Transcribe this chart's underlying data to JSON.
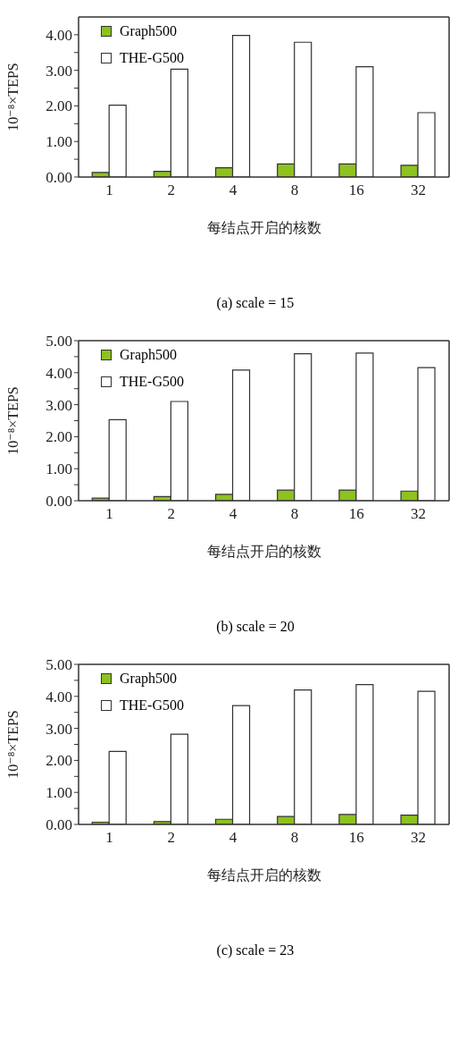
{
  "chart_data": [
    {
      "type": "bar",
      "title": "(a)  scale = 15",
      "xlabel": "每结点开启的核数",
      "ylabel": "10⁻⁸×TEPS",
      "categories": [
        "1",
        "2",
        "4",
        "8",
        "16",
        "32"
      ],
      "series": [
        {
          "name": "Graph500",
          "color": "#8dc21f",
          "values": [
            0.13,
            0.16,
            0.26,
            0.37,
            0.37,
            0.33
          ]
        },
        {
          "name": "THE-G500",
          "color": "#ffffff",
          "values": [
            2.02,
            3.03,
            3.98,
            3.79,
            3.1,
            1.81
          ]
        }
      ],
      "ylim": [
        0,
        4.5
      ],
      "yticks": [
        {
          "value": 0,
          "label": "0.00"
        },
        {
          "value": 0.5,
          "label": null
        },
        {
          "value": 1,
          "label": "1.00"
        },
        {
          "value": 1.5,
          "label": null
        },
        {
          "value": 2,
          "label": "2.00"
        },
        {
          "value": 2.5,
          "label": null
        },
        {
          "value": 3,
          "label": "3.00"
        },
        {
          "value": 3.5,
          "label": null
        },
        {
          "value": 4,
          "label": "4.00"
        }
      ],
      "grid": false,
      "legend": "top left"
    },
    {
      "type": "bar",
      "title": "(b)  scale = 20",
      "xlabel": "每结点开启的核数",
      "ylabel": "10⁻⁸×TEPS",
      "categories": [
        "1",
        "2",
        "4",
        "8",
        "16",
        "32"
      ],
      "series": [
        {
          "name": "Graph500",
          "color": "#8dc21f",
          "values": [
            0.08,
            0.13,
            0.2,
            0.33,
            0.33,
            0.3
          ]
        },
        {
          "name": "THE-G500",
          "color": "#ffffff",
          "values": [
            2.53,
            3.1,
            4.08,
            4.59,
            4.61,
            4.16
          ]
        }
      ],
      "ylim": [
        0,
        5
      ],
      "yticks": [
        {
          "value": 0,
          "label": "0.00"
        },
        {
          "value": 0.5,
          "label": null
        },
        {
          "value": 1,
          "label": "1.00"
        },
        {
          "value": 1.5,
          "label": null
        },
        {
          "value": 2,
          "label": "2.00"
        },
        {
          "value": 2.5,
          "label": null
        },
        {
          "value": 3,
          "label": "3.00"
        },
        {
          "value": 3.5,
          "label": null
        },
        {
          "value": 4,
          "label": "4.00"
        },
        {
          "value": 4.5,
          "label": null
        },
        {
          "value": 5,
          "label": "5.00"
        }
      ],
      "grid": false,
      "legend": "top left"
    },
    {
      "type": "bar",
      "title": "(c)  scale = 23",
      "xlabel": "每结点开启的核数",
      "ylabel": "10⁻⁸×TEPS",
      "categories": [
        "1",
        "2",
        "4",
        "8",
        "16",
        "32"
      ],
      "series": [
        {
          "name": "Graph500",
          "color": "#8dc21f",
          "values": [
            0.07,
            0.09,
            0.16,
            0.25,
            0.31,
            0.29
          ]
        },
        {
          "name": "THE-G500",
          "color": "#ffffff",
          "values": [
            2.28,
            2.82,
            3.71,
            4.2,
            4.37,
            4.16
          ]
        }
      ],
      "ylim": [
        0,
        5
      ],
      "yticks": [
        {
          "value": 0,
          "label": "0.00"
        },
        {
          "value": 0.5,
          "label": null
        },
        {
          "value": 1,
          "label": "1.00"
        },
        {
          "value": 1.5,
          "label": null
        },
        {
          "value": 2,
          "label": "2.00"
        },
        {
          "value": 2.5,
          "label": null
        },
        {
          "value": 3,
          "label": "3.00"
        },
        {
          "value": 3.5,
          "label": null
        },
        {
          "value": 4,
          "label": "4.00"
        },
        {
          "value": 4.5,
          "label": null
        },
        {
          "value": 5,
          "label": "5.00"
        }
      ],
      "grid": false,
      "legend": "top left"
    }
  ]
}
